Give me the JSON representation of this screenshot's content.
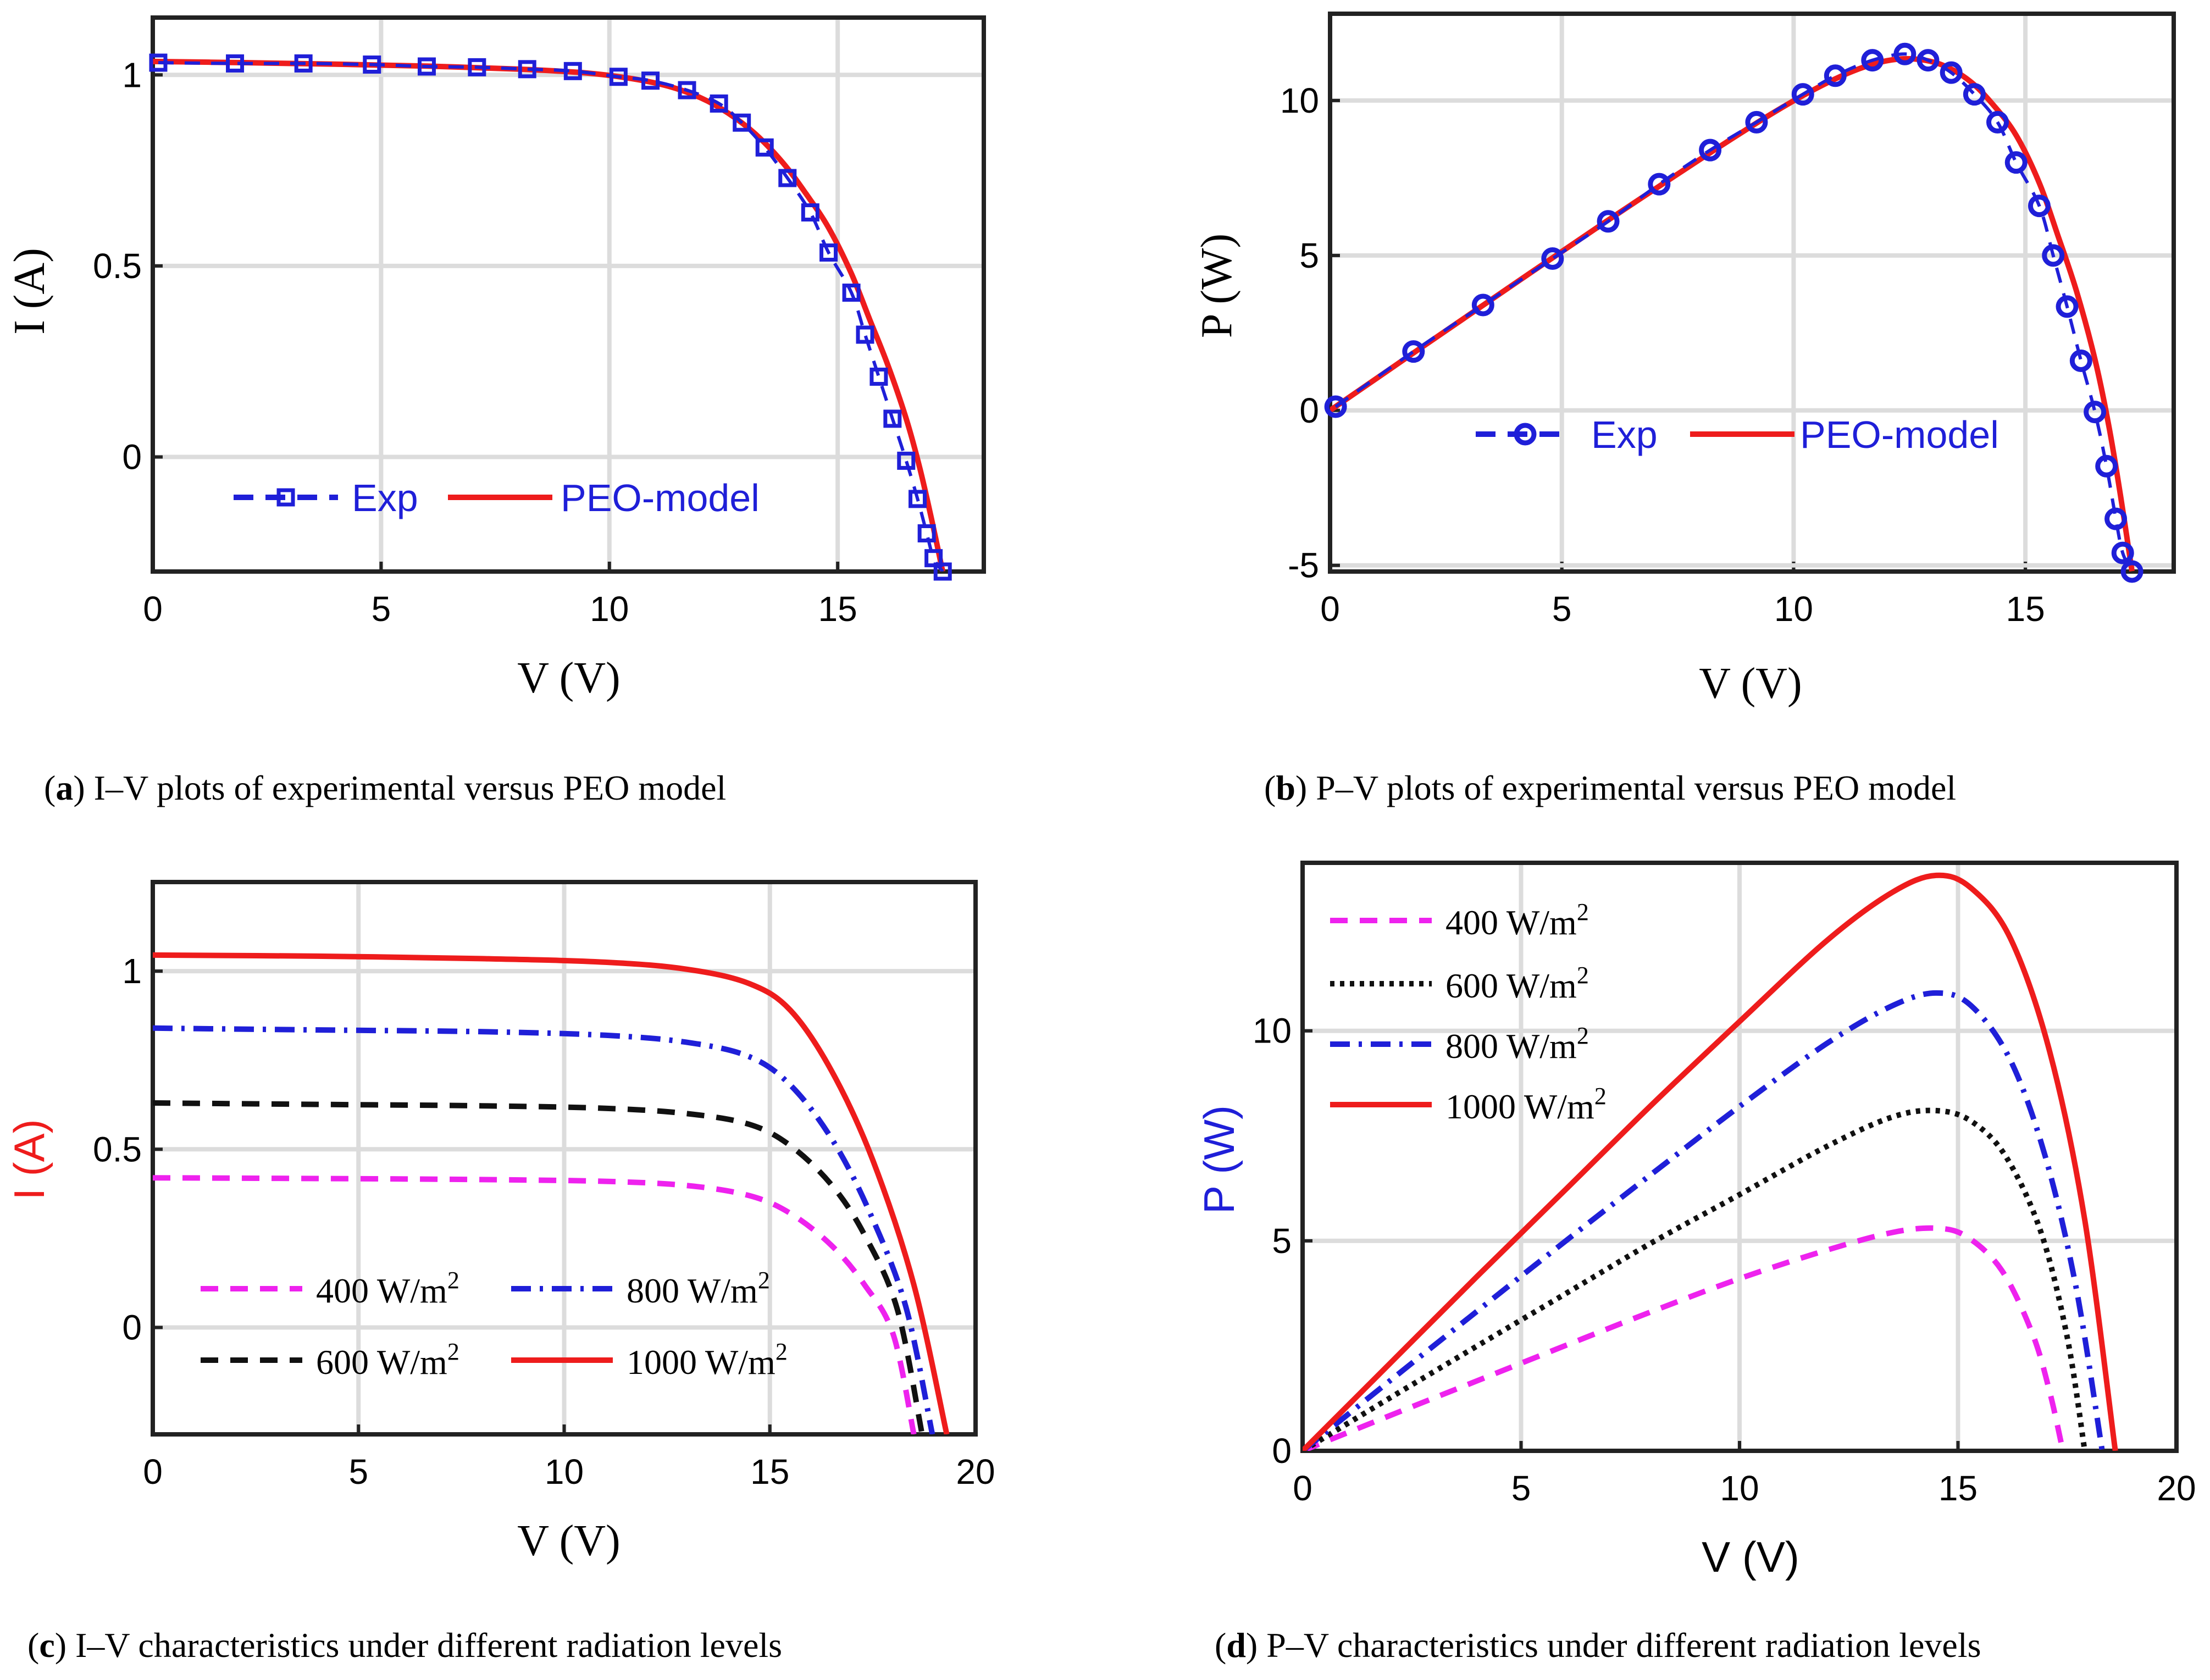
{
  "panels": [
    {
      "id": "a",
      "caption_letter": "a",
      "caption_text": " I–V plots of experimental versus PEO model",
      "xlabel": "V (V)",
      "ylabel": "I (A)",
      "xticks": [
        "0",
        "5",
        "10",
        "15"
      ],
      "yticks": [
        "0",
        "0.5",
        "1"
      ],
      "legend": [
        "Exp",
        "PEO-model"
      ]
    },
    {
      "id": "b",
      "caption_letter": "b",
      "caption_text": " P–V plots of experimental versus PEO model",
      "xlabel": "V (V)",
      "ylabel": "P (W)",
      "xticks": [
        "0",
        "5",
        "10",
        "15"
      ],
      "yticks": [
        "-5",
        "0",
        "5",
        "10"
      ],
      "legend": [
        "Exp",
        "PEO-model"
      ]
    },
    {
      "id": "c",
      "caption_letter": "c",
      "caption_text": " I–V characteristics under different radiation levels",
      "xlabel": "V (V)",
      "ylabel": "I (A)",
      "xticks": [
        "0",
        "5",
        "10",
        "15",
        "20"
      ],
      "yticks": [
        "0",
        "0.5",
        "1"
      ],
      "legend": [
        "400 W/m",
        "800 W/m",
        "600 W/m",
        "1000 W/m"
      ],
      "legend_sup": "2"
    },
    {
      "id": "d",
      "caption_letter": "d",
      "caption_text": " P–V characteristics under different radiation levels",
      "xlabel": "V (V)",
      "ylabel": "P (W)",
      "xticks": [
        "0",
        "5",
        "10",
        "15",
        "20"
      ],
      "yticks": [
        "0",
        "5",
        "10"
      ],
      "legend": [
        "400 W/m",
        "600 W/m",
        "800 W/m",
        "1000 W/m"
      ],
      "legend_sup": "2"
    }
  ],
  "colors": {
    "exp": "#1f1fd8",
    "model": "#ee1c1c",
    "g400": "#ee22ee",
    "g600": "#111111",
    "g800": "#1f1fd8",
    "g1000": "#ee1c1c",
    "ylabel_c": "#ee1c1c",
    "ylabel_d": "#1f1fd8"
  },
  "chart_data": [
    {
      "type": "line",
      "xlim": [
        0,
        18.2
      ],
      "ylim": [
        -0.3,
        1.15
      ],
      "series": [
        {
          "name": "Exp",
          "marker": "square",
          "x": [
            0.12,
            1.8,
            3.3,
            4.8,
            6.0,
            7.1,
            8.2,
            9.2,
            10.2,
            10.9,
            11.7,
            12.4,
            12.9,
            13.4,
            13.9,
            14.4,
            14.8,
            15.3,
            15.6,
            15.9,
            16.2,
            16.5,
            16.75,
            16.95,
            17.1,
            17.3
          ],
          "y": [
            1.032,
            1.03,
            1.03,
            1.027,
            1.022,
            1.02,
            1.015,
            1.01,
            0.995,
            0.985,
            0.96,
            0.925,
            0.875,
            0.81,
            0.73,
            0.64,
            0.535,
            0.43,
            0.32,
            0.21,
            0.1,
            -0.01,
            -0.11,
            -0.2,
            -0.265,
            -0.3
          ]
        },
        {
          "name": "PEO-model",
          "x": [
            0.0,
            2.0,
            4.0,
            6.0,
            8.0,
            9.5,
            10.5,
            11.3,
            12.0,
            12.6,
            13.2,
            13.8,
            14.3,
            14.8,
            15.3,
            15.7,
            16.1,
            16.5,
            16.8,
            17.05,
            17.3
          ],
          "y": [
            1.035,
            1.032,
            1.028,
            1.023,
            1.015,
            1.005,
            0.99,
            0.97,
            0.94,
            0.9,
            0.845,
            0.77,
            0.69,
            0.6,
            0.48,
            0.36,
            0.24,
            0.1,
            -0.03,
            -0.16,
            -0.3
          ]
        }
      ]
    },
    {
      "type": "line",
      "xlim": [
        0,
        18.2
      ],
      "ylim": [
        -5.2,
        12.8
      ],
      "series": [
        {
          "name": "Exp",
          "marker": "circle",
          "x": [
            0.12,
            1.8,
            3.3,
            4.8,
            6.0,
            7.1,
            8.2,
            9.2,
            10.2,
            10.9,
            11.7,
            12.4,
            12.9,
            13.4,
            13.9,
            14.4,
            14.8,
            15.3,
            15.6,
            15.9,
            16.2,
            16.5,
            16.75,
            16.95,
            17.1,
            17.3
          ],
          "y": [
            0.12,
            1.9,
            3.4,
            4.9,
            6.1,
            7.3,
            8.4,
            9.3,
            10.2,
            10.8,
            11.3,
            11.5,
            11.3,
            10.9,
            10.2,
            9.3,
            8.0,
            6.6,
            5.0,
            3.35,
            1.6,
            -0.05,
            -1.8,
            -3.5,
            -4.6,
            -5.2
          ]
        },
        {
          "name": "PEO-model",
          "x": [
            0.0,
            2.0,
            4.0,
            6.0,
            8.0,
            9.5,
            10.5,
            11.3,
            12.0,
            12.6,
            13.2,
            13.8,
            14.3,
            14.8,
            15.3,
            15.7,
            16.1,
            16.5,
            16.8,
            17.05,
            17.3
          ],
          "y": [
            0.0,
            2.06,
            4.11,
            6.14,
            8.12,
            9.55,
            10.4,
            10.96,
            11.28,
            11.34,
            11.15,
            10.63,
            9.87,
            8.88,
            7.34,
            5.65,
            3.86,
            1.65,
            -0.5,
            -2.73,
            -5.19
          ]
        }
      ]
    },
    {
      "type": "line",
      "xlim": [
        0,
        20
      ],
      "ylim": [
        -0.3,
        1.25
      ],
      "series": [
        {
          "name": "400 W/m²",
          "x": [
            0,
            4,
            8,
            11,
            13,
            14.5,
            15.5,
            16.5,
            17.3,
            18.0,
            18.5
          ],
          "y": [
            0.42,
            0.418,
            0.415,
            0.41,
            0.398,
            0.37,
            0.32,
            0.23,
            0.12,
            -0.02,
            -0.3
          ]
        },
        {
          "name": "800 W/m²",
          "x": [
            0,
            4,
            8,
            11,
            13,
            14.5,
            15.5,
            16.5,
            17.4,
            18.3,
            18.95
          ],
          "y": [
            0.84,
            0.835,
            0.83,
            0.82,
            0.8,
            0.76,
            0.68,
            0.53,
            0.33,
            0.06,
            -0.3
          ]
        },
        {
          "name": "600 W/m²",
          "x": [
            0,
            4,
            8,
            11,
            13,
            14.5,
            15.5,
            16.5,
            17.3,
            18.1,
            18.7
          ],
          "y": [
            0.63,
            0.626,
            0.622,
            0.615,
            0.6,
            0.57,
            0.51,
            0.4,
            0.26,
            0.05,
            -0.3
          ]
        },
        {
          "name": "1000 W/m²",
          "x": [
            0,
            4,
            8,
            11,
            13,
            14.5,
            15.5,
            16.5,
            17.5,
            18.5,
            19.3
          ],
          "y": [
            1.045,
            1.042,
            1.035,
            1.025,
            1.005,
            0.965,
            0.89,
            0.72,
            0.47,
            0.12,
            -0.3
          ]
        }
      ]
    },
    {
      "type": "line",
      "xlim": [
        0,
        20
      ],
      "ylim": [
        0,
        14
      ],
      "series": [
        {
          "name": "400 W/m²",
          "x": [
            0,
            2,
            4,
            6,
            8,
            10,
            12,
            13.5,
            14.5,
            15.2,
            16,
            16.7,
            17.1,
            17.4
          ],
          "y": [
            0,
            0.84,
            1.67,
            2.5,
            3.32,
            4.1,
            4.78,
            5.2,
            5.3,
            5.1,
            4.3,
            2.8,
            1.4,
            0
          ]
        },
        {
          "name": "600 W/m²",
          "x": [
            0,
            2,
            4,
            6,
            8,
            10,
            12,
            13.5,
            14.5,
            15.3,
            16.1,
            16.9,
            17.5,
            17.9
          ],
          "y": [
            0,
            1.26,
            2.5,
            3.73,
            4.96,
            6.1,
            7.25,
            7.95,
            8.1,
            7.85,
            7.0,
            5.2,
            2.7,
            0
          ]
        },
        {
          "name": "800 W/m²",
          "x": [
            0,
            2,
            4,
            6,
            8,
            10,
            12,
            13.5,
            14.5,
            15.3,
            16.2,
            17.0,
            17.7,
            18.3
          ],
          "y": [
            0,
            1.67,
            3.33,
            4.98,
            6.6,
            8.2,
            9.7,
            10.6,
            10.9,
            10.6,
            9.3,
            7.0,
            3.9,
            0
          ]
        },
        {
          "name": "1000 W/m²",
          "x": [
            0,
            2,
            4,
            6,
            8,
            10,
            12,
            13.5,
            14.5,
            15.3,
            16.2,
            17.1,
            17.9,
            18.6
          ],
          "y": [
            0,
            2.08,
            4.16,
            6.2,
            8.25,
            10.22,
            12.15,
            13.3,
            13.7,
            13.4,
            12.2,
            9.5,
            5.5,
            0
          ]
        }
      ]
    }
  ]
}
